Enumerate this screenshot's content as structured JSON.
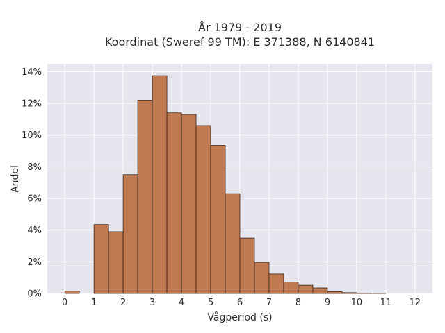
{
  "chart_data": {
    "type": "bar",
    "title_line1": "År 1979 - 2019",
    "title_line2": "Koordinat (Sweref 99 TM): E 371388, N 6140841",
    "xlabel": "Vågperiod (s)",
    "ylabel": "Andel",
    "bin_width": 0.5,
    "bin_starts": [
      0,
      0.5,
      1,
      1.5,
      2,
      2.5,
      3,
      3.5,
      4,
      4.5,
      5,
      5.5,
      6,
      6.5,
      7,
      7.5,
      8,
      8.5,
      9,
      9.5,
      10,
      10.5,
      11,
      11.5
    ],
    "values": [
      0.15,
      0,
      4.35,
      3.9,
      7.5,
      12.2,
      13.75,
      11.4,
      11.3,
      10.6,
      9.35,
      6.3,
      3.5,
      1.97,
      1.23,
      0.72,
      0.52,
      0.35,
      0.12,
      0.05,
      0.02,
      0.01,
      0,
      0
    ],
    "xlim": [
      -0.6,
      12.6
    ],
    "ylim": [
      0,
      14.5
    ],
    "xticks": [
      0,
      1,
      2,
      3,
      4,
      5,
      6,
      7,
      8,
      9,
      10,
      11,
      12
    ],
    "xtick_labels": [
      "0",
      "1",
      "2",
      "3",
      "4",
      "5",
      "6",
      "7",
      "8",
      "9",
      "10",
      "11",
      "12"
    ],
    "yticks": [
      0,
      2,
      4,
      6,
      8,
      10,
      12,
      14
    ],
    "ytick_labels": [
      "0%",
      "2%",
      "4%",
      "6%",
      "8%",
      "10%",
      "12%",
      "14%"
    ],
    "grid": true,
    "colors": {
      "bar_fill": "#c07a52",
      "bar_edge": "#3a2418",
      "plot_bg": "#e6e6ef",
      "grid": "#ffffff"
    }
  }
}
